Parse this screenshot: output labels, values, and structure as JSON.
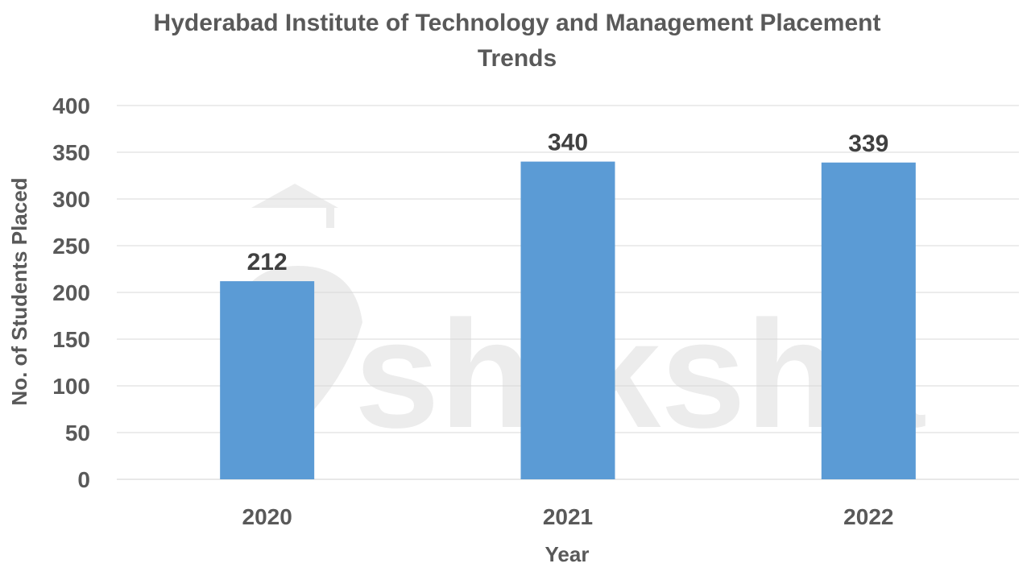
{
  "chart_data": {
    "type": "bar",
    "title": "Hyderabad Institute of Technology and Management Placement Trends",
    "title_lines": [
      "Hyderabad Institute of Technology and Management Placement",
      "Trends"
    ],
    "xlabel": "Year",
    "ylabel": "No. of Students Placed",
    "categories": [
      "2020",
      "2021",
      "2022"
    ],
    "values": [
      212,
      340,
      339
    ],
    "ylim": [
      0,
      400
    ],
    "yticks": [
      0,
      50,
      100,
      150,
      200,
      250,
      300,
      350,
      400
    ],
    "grid": true,
    "legend": "none",
    "bar_color": "#5b9bd5",
    "label_color": "#404040",
    "watermark": "shiksha"
  }
}
